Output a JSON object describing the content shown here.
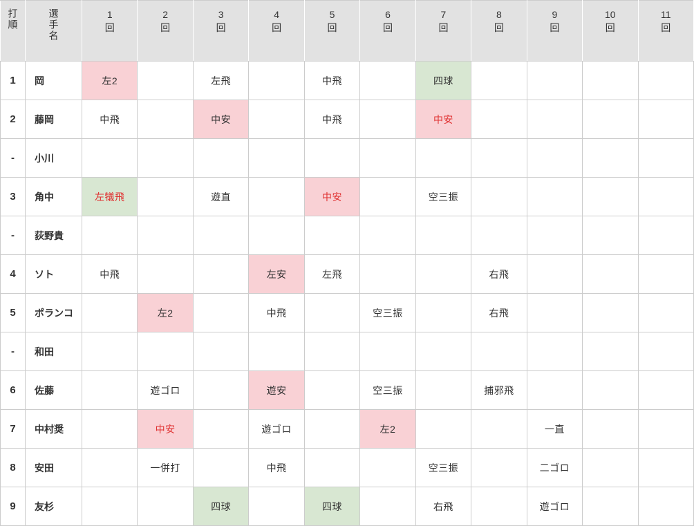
{
  "table": {
    "header": {
      "order_label": "打順",
      "name_label": "選手名",
      "inning_suffix": "回",
      "innings": [
        "1",
        "2",
        "3",
        "4",
        "5",
        "6",
        "7",
        "8",
        "9",
        "10",
        "11"
      ]
    },
    "colors": {
      "highlight_pink": "#f9d1d5",
      "highlight_green": "#d8e7d2",
      "red_text": "#e03030",
      "header_bg": "#e2e2e2",
      "border": "#cccccc"
    },
    "rows": [
      {
        "order": "1",
        "name": "岡",
        "results": [
          {
            "text": "左2",
            "bg": "pink"
          },
          null,
          {
            "text": "左飛"
          },
          null,
          {
            "text": "中飛"
          },
          null,
          {
            "text": "四球",
            "bg": "green"
          },
          null,
          null,
          null,
          null
        ]
      },
      {
        "order": "2",
        "name": "藤岡",
        "results": [
          {
            "text": "中飛"
          },
          null,
          {
            "text": "中安",
            "bg": "pink"
          },
          null,
          {
            "text": "中飛"
          },
          null,
          {
            "text": "中安",
            "bg": "pink",
            "fg": "red"
          },
          null,
          null,
          null,
          null
        ]
      },
      {
        "order": "-",
        "name": "小川",
        "results": [
          null,
          null,
          null,
          null,
          null,
          null,
          null,
          null,
          null,
          null,
          null
        ]
      },
      {
        "order": "3",
        "name": "角中",
        "results": [
          {
            "text": "左犠飛",
            "bg": "green",
            "fg": "red"
          },
          null,
          {
            "text": "遊直"
          },
          null,
          {
            "text": "中安",
            "bg": "pink",
            "fg": "red"
          },
          null,
          {
            "text": "空三振"
          },
          null,
          null,
          null,
          null
        ]
      },
      {
        "order": "-",
        "name": "荻野貴",
        "results": [
          null,
          null,
          null,
          null,
          null,
          null,
          null,
          null,
          null,
          null,
          null
        ]
      },
      {
        "order": "4",
        "name": "ソト",
        "results": [
          {
            "text": "中飛"
          },
          null,
          null,
          {
            "text": "左安",
            "bg": "pink"
          },
          {
            "text": "左飛"
          },
          null,
          null,
          {
            "text": "右飛"
          },
          null,
          null,
          null
        ]
      },
      {
        "order": "5",
        "name": "ポランコ",
        "results": [
          null,
          {
            "text": "左2",
            "bg": "pink"
          },
          null,
          {
            "text": "中飛"
          },
          null,
          {
            "text": "空三振"
          },
          null,
          {
            "text": "右飛"
          },
          null,
          null,
          null
        ]
      },
      {
        "order": "-",
        "name": "和田",
        "results": [
          null,
          null,
          null,
          null,
          null,
          null,
          null,
          null,
          null,
          null,
          null
        ]
      },
      {
        "order": "6",
        "name": "佐藤",
        "results": [
          null,
          {
            "text": "遊ゴロ"
          },
          null,
          {
            "text": "遊安",
            "bg": "pink"
          },
          null,
          {
            "text": "空三振"
          },
          null,
          {
            "text": "捕邪飛"
          },
          null,
          null,
          null
        ]
      },
      {
        "order": "7",
        "name": "中村奨",
        "results": [
          null,
          {
            "text": "中安",
            "bg": "pink",
            "fg": "red"
          },
          null,
          {
            "text": "遊ゴロ"
          },
          null,
          {
            "text": "左2",
            "bg": "pink"
          },
          null,
          null,
          {
            "text": "一直"
          },
          null,
          null
        ]
      },
      {
        "order": "8",
        "name": "安田",
        "results": [
          null,
          {
            "text": "一併打"
          },
          null,
          {
            "text": "中飛"
          },
          null,
          null,
          {
            "text": "空三振"
          },
          null,
          {
            "text": "二ゴロ"
          },
          null,
          null
        ]
      },
      {
        "order": "9",
        "name": "友杉",
        "results": [
          null,
          null,
          {
            "text": "四球",
            "bg": "green"
          },
          null,
          {
            "text": "四球",
            "bg": "green"
          },
          null,
          {
            "text": "右飛"
          },
          null,
          {
            "text": "遊ゴロ"
          },
          null,
          null
        ]
      }
    ]
  }
}
